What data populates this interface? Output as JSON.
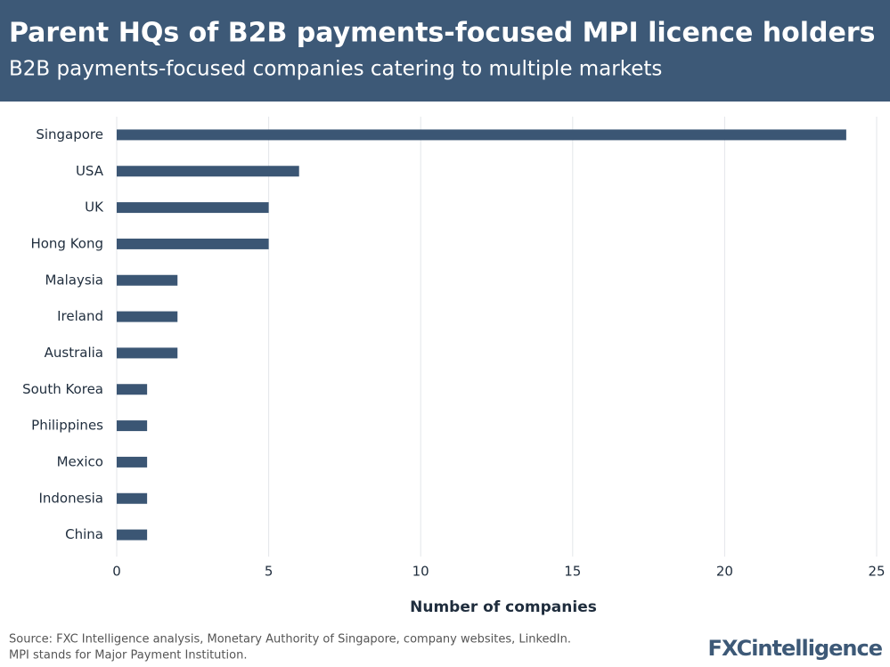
{
  "chart_data": {
    "type": "bar",
    "orientation": "horizontal",
    "title": "Parent HQs of B2B payments-focused MPI licence holders",
    "subtitle": "B2B payments-focused companies catering to multiple markets",
    "categories": [
      "Singapore",
      "USA",
      "UK",
      "Hong Kong",
      "Malaysia",
      "Ireland",
      "Australia",
      "South Korea",
      "Philippines",
      "Mexico",
      "Indonesia",
      "China"
    ],
    "values": [
      24,
      6,
      5,
      5,
      2,
      2,
      2,
      1,
      1,
      1,
      1,
      1
    ],
    "color": "#3b5674",
    "xlim": [
      0,
      25
    ],
    "xticks": [
      0,
      5,
      10,
      15,
      20,
      25
    ],
    "grid": true,
    "xlabel": "Number of companies",
    "notes": [
      "Source: FXC Intelligence analysis, Monetary Authority of Singapore, company websites, LinkedIn.",
      "MPI stands for Major Payment Institution."
    ],
    "logo": "FXCintelligence"
  }
}
